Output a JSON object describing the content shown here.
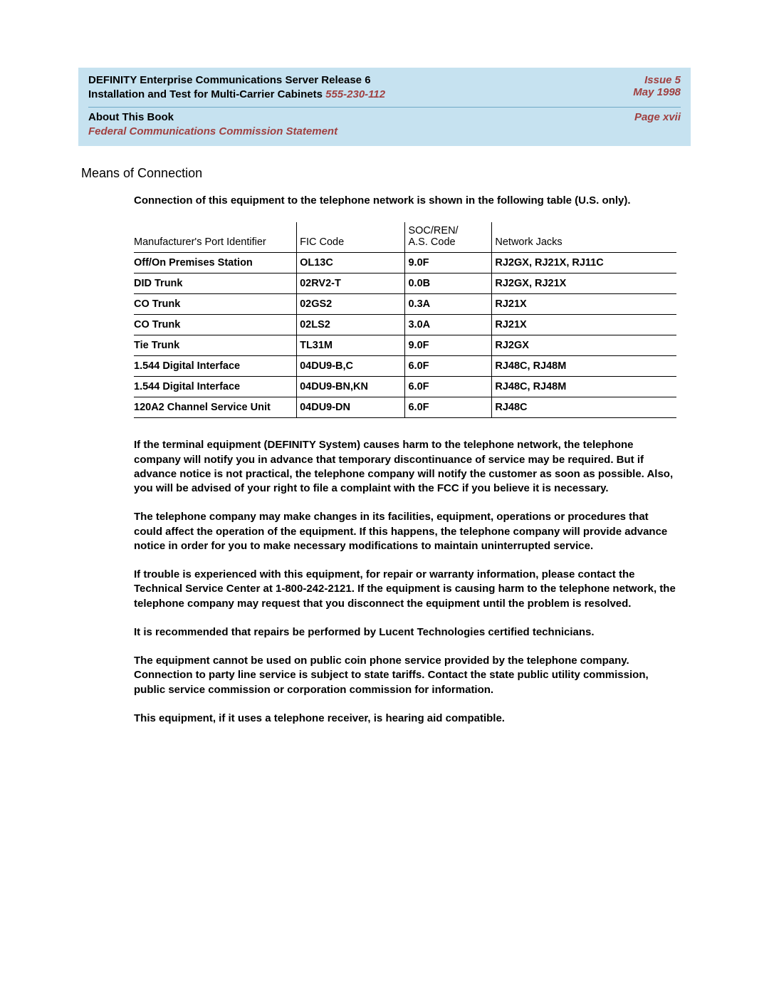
{
  "header": {
    "line1": "DEFINITY Enterprise Communications Server Release 6",
    "line2_a": "Installation and Test for Multi-Carrier Cabinets",
    "line2_b": "555-230-112",
    "issue": "Issue 5",
    "date": "May 1998",
    "sub1": "About This Book",
    "sub2": "Federal Communications Commission Statement",
    "page": "Page xvii"
  },
  "section_title": "Means of Connection",
  "intro": "Connection of this equipment to the telephone network is shown in the following table (U.S. only).",
  "table": {
    "columns": [
      "Manufacturer's Port Identifier",
      "FIC Code",
      "SOC/REN/\nA.S. Code",
      "Network Jacks"
    ],
    "rows": [
      [
        "Off/On Premises Station",
        "OL13C",
        "9.0F",
        "RJ2GX, RJ21X, RJ11C"
      ],
      [
        "DID Trunk",
        "02RV2-T",
        "0.0B",
        "RJ2GX, RJ21X"
      ],
      [
        "CO Trunk",
        "02GS2",
        "0.3A",
        "RJ21X"
      ],
      [
        "CO Trunk",
        "02LS2",
        "3.0A",
        "RJ21X"
      ],
      [
        "Tie Trunk",
        "TL31M",
        "9.0F",
        "RJ2GX"
      ],
      [
        "1.544 Digital Interface",
        "04DU9-B,C",
        "6.0F",
        "RJ48C, RJ48M"
      ],
      [
        "1.544 Digital Interface",
        "04DU9-BN,KN",
        "6.0F",
        "RJ48C, RJ48M"
      ],
      [
        "120A2 Channel Service Unit",
        "04DU9-DN",
        "6.0F",
        "RJ48C"
      ]
    ]
  },
  "paras": [
    "If the terminal equipment (DEFINITY System) causes harm to the telephone network, the telephone company will notify you in advance that temporary discontinuance of service may be required. But if advance notice is not practical, the telephone company will notify the customer as soon as possible. Also, you will be advised of your right to file a complaint with the FCC if you believe it is necessary.",
    "The telephone company may make changes in its facilities, equipment, operations or procedures that could affect the operation of the equipment. If this happens, the telephone company will provide advance notice in order for you to make necessary modifications to maintain uninterrupted service.",
    "If trouble is experienced with this equipment, for repair or warranty information, please contact the Technical Service Center at 1-800-242-2121. If the equipment is causing harm to the telephone network, the telephone company may request that you disconnect the equipment until the problem is resolved.",
    "It is recommended that repairs be performed by Lucent Technologies certified technicians.",
    "The equipment cannot be used on public coin phone service provided by the telephone company. Connection to party line service is subject to state tariffs. Contact the state public utility commission, public service commission or corporation commission for information.",
    "This equipment, if it uses a telephone receiver, is hearing aid compatible."
  ],
  "style": {
    "header_bg": "#c6e2f0",
    "accent_color": "#a04040",
    "text_color": "#000000",
    "page_bg": "#ffffff",
    "body_font_size": 15,
    "title_font_size": 18,
    "table_font_size": 14.5
  }
}
